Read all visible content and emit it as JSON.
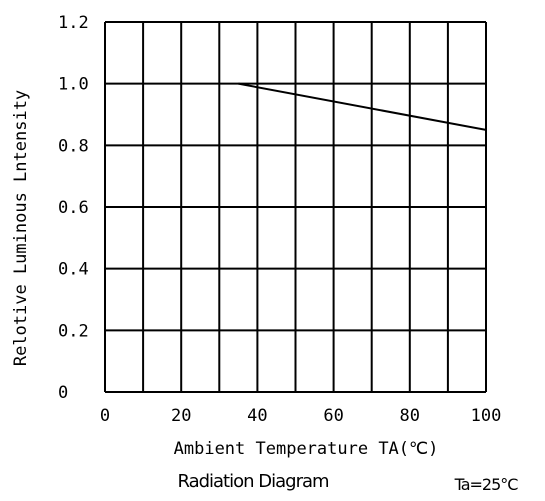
{
  "chart_data": {
    "type": "line",
    "title": "Radiation Diagram",
    "condition": "Ta=25°C",
    "xlabel": "Ambient Temperature TA(℃)",
    "ylabel": "Relotive Luminous Lntensity",
    "xlim": [
      0,
      100
    ],
    "ylim": [
      0,
      1.2
    ],
    "x_ticks": [
      "0",
      "20",
      "40",
      "60",
      "80",
      "100"
    ],
    "y_ticks": [
      "1.2",
      "1.0",
      "0.8",
      "0.6",
      "0.4",
      "0.2",
      "0"
    ],
    "grid": true,
    "series": [
      {
        "x": [
          35,
          100
        ],
        "y": [
          1.0,
          0.85
        ]
      }
    ]
  }
}
